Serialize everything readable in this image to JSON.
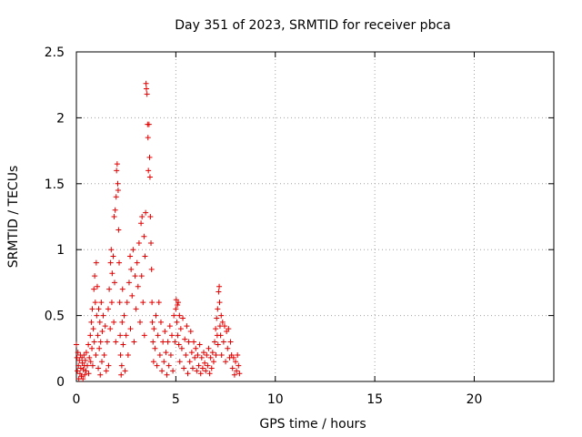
{
  "chart_data": {
    "type": "scatter",
    "title": "Day 351 of 2023, SRMTID for receiver pbca",
    "xlabel": "GPS time / hours",
    "ylabel": "SRMTID / TECUs",
    "xlim": [
      0,
      24
    ],
    "ylim": [
      0,
      2.5
    ],
    "x_ticks": [
      0,
      5,
      10,
      15,
      20
    ],
    "y_ticks": [
      0,
      0.5,
      1,
      1.5,
      2,
      2.5
    ],
    "x_tick_labels": [
      "0",
      "5",
      "10",
      "15",
      "20"
    ],
    "y_tick_labels": [
      "0",
      "0.5",
      "1",
      "1.5",
      "2",
      "2.5"
    ],
    "grid": true,
    "marker": "plus",
    "series": [
      {
        "name": "SRMTID",
        "color": "#e00000",
        "points": [
          [
            0.0,
            0.28
          ],
          [
            0.03,
            0.18
          ],
          [
            0.05,
            0.08
          ],
          [
            0.08,
            0.22
          ],
          [
            0.1,
            0.12
          ],
          [
            0.12,
            0.02
          ],
          [
            0.15,
            0.16
          ],
          [
            0.18,
            0.06
          ],
          [
            0.2,
            0.2
          ],
          [
            0.22,
            0.1
          ],
          [
            0.25,
            0.04
          ],
          [
            0.28,
            0.18
          ],
          [
            0.3,
            0.14
          ],
          [
            0.33,
            0.02
          ],
          [
            0.35,
            0.09
          ],
          [
            0.38,
            0.2
          ],
          [
            0.4,
            0.12
          ],
          [
            0.42,
            0.05
          ],
          [
            0.45,
            0.16
          ],
          [
            0.48,
            0.08
          ],
          [
            0.5,
            0.22
          ],
          [
            0.55,
            0.12
          ],
          [
            0.6,
            0.28
          ],
          [
            0.62,
            0.06
          ],
          [
            0.65,
            0.18
          ],
          [
            0.7,
            0.35
          ],
          [
            0.72,
            0.15
          ],
          [
            0.75,
            0.45
          ],
          [
            0.78,
            0.25
          ],
          [
            0.8,
            0.55
          ],
          [
            0.82,
            0.12
          ],
          [
            0.85,
            0.4
          ],
          [
            0.88,
            0.7
          ],
          [
            0.9,
            0.3
          ],
          [
            0.92,
            0.8
          ],
          [
            0.95,
            0.6
          ],
          [
            0.98,
            0.2
          ],
          [
            1.0,
            0.9
          ],
          [
            1.02,
            0.5
          ],
          [
            1.05,
            0.72
          ],
          [
            1.08,
            0.35
          ],
          [
            1.1,
            0.1
          ],
          [
            1.12,
            0.55
          ],
          [
            1.15,
            0.25
          ],
          [
            1.18,
            0.45
          ],
          [
            1.2,
            0.05
          ],
          [
            1.22,
            0.3
          ],
          [
            1.25,
            0.6
          ],
          [
            1.28,
            0.15
          ],
          [
            1.3,
            0.38
          ],
          [
            1.35,
            0.5
          ],
          [
            1.4,
            0.2
          ],
          [
            1.45,
            0.42
          ],
          [
            1.5,
            0.08
          ],
          [
            1.55,
            0.3
          ],
          [
            1.6,
            0.55
          ],
          [
            1.62,
            0.12
          ],
          [
            1.65,
            0.7
          ],
          [
            1.7,
            0.4
          ],
          [
            1.72,
            0.9
          ],
          [
            1.75,
            1.0
          ],
          [
            1.78,
            0.6
          ],
          [
            1.8,
            0.82
          ],
          [
            1.85,
            0.95
          ],
          [
            1.88,
            0.45
          ],
          [
            1.9,
            1.25
          ],
          [
            1.92,
            0.75
          ],
          [
            1.95,
            1.3
          ],
          [
            1.98,
            0.3
          ],
          [
            2.0,
            1.4
          ],
          [
            2.02,
            1.6
          ],
          [
            2.05,
            1.65
          ],
          [
            2.08,
            1.5
          ],
          [
            2.1,
            1.45
          ],
          [
            2.12,
            1.15
          ],
          [
            2.15,
            0.9
          ],
          [
            2.18,
            0.6
          ],
          [
            2.2,
            0.35
          ],
          [
            2.22,
            0.2
          ],
          [
            2.25,
            0.05
          ],
          [
            2.28,
            0.12
          ],
          [
            2.3,
            0.45
          ],
          [
            2.32,
            0.7
          ],
          [
            2.35,
            0.28
          ],
          [
            2.4,
            0.5
          ],
          [
            2.45,
            0.08
          ],
          [
            2.5,
            0.35
          ],
          [
            2.55,
            0.6
          ],
          [
            2.6,
            0.2
          ],
          [
            2.65,
            0.75
          ],
          [
            2.7,
            0.95
          ],
          [
            2.72,
            0.4
          ],
          [
            2.75,
            0.85
          ],
          [
            2.8,
            0.65
          ],
          [
            2.85,
            1.0
          ],
          [
            2.9,
            0.3
          ],
          [
            2.95,
            0.8
          ],
          [
            3.0,
            0.55
          ],
          [
            3.05,
            0.9
          ],
          [
            3.1,
            0.72
          ],
          [
            3.15,
            1.05
          ],
          [
            3.2,
            0.45
          ],
          [
            3.25,
            1.2
          ],
          [
            3.28,
            0.8
          ],
          [
            3.3,
            1.25
          ],
          [
            3.35,
            0.6
          ],
          [
            3.4,
            1.1
          ],
          [
            3.42,
            0.35
          ],
          [
            3.45,
            0.95
          ],
          [
            3.48,
            1.28
          ],
          [
            3.5,
            2.26
          ],
          [
            3.52,
            2.22
          ],
          [
            3.55,
            2.18
          ],
          [
            3.58,
            1.95
          ],
          [
            3.6,
            1.85
          ],
          [
            3.62,
            1.6
          ],
          [
            3.65,
            1.95
          ],
          [
            3.68,
            1.7
          ],
          [
            3.7,
            1.55
          ],
          [
            3.72,
            1.25
          ],
          [
            3.75,
            1.05
          ],
          [
            3.78,
            0.85
          ],
          [
            3.8,
            0.6
          ],
          [
            3.82,
            0.45
          ],
          [
            3.85,
            0.3
          ],
          [
            3.88,
            0.15
          ],
          [
            3.9,
            0.4
          ],
          [
            3.95,
            0.25
          ],
          [
            4.0,
            0.5
          ],
          [
            4.05,
            0.12
          ],
          [
            4.1,
            0.35
          ],
          [
            4.15,
            0.6
          ],
          [
            4.2,
            0.2
          ],
          [
            4.25,
            0.45
          ],
          [
            4.3,
            0.08
          ],
          [
            4.35,
            0.3
          ],
          [
            4.4,
            0.15
          ],
          [
            4.45,
            0.38
          ],
          [
            4.5,
            0.22
          ],
          [
            4.55,
            0.05
          ],
          [
            4.6,
            0.3
          ],
          [
            4.65,
            0.12
          ],
          [
            4.7,
            0.42
          ],
          [
            4.75,
            0.2
          ],
          [
            4.8,
            0.35
          ],
          [
            4.85,
            0.08
          ],
          [
            4.9,
            0.5
          ],
          [
            4.95,
            0.3
          ],
          [
            5.0,
            0.55
          ],
          [
            5.02,
            0.62
          ],
          [
            5.05,
            0.45
          ],
          [
            5.08,
            0.58
          ],
          [
            5.1,
            0.35
          ],
          [
            5.12,
            0.6
          ],
          [
            5.15,
            0.28
          ],
          [
            5.18,
            0.5
          ],
          [
            5.2,
            0.15
          ],
          [
            5.25,
            0.4
          ],
          [
            5.3,
            0.25
          ],
          [
            5.35,
            0.48
          ],
          [
            5.4,
            0.1
          ],
          [
            5.45,
            0.32
          ],
          [
            5.5,
            0.2
          ],
          [
            5.55,
            0.42
          ],
          [
            5.6,
            0.06
          ],
          [
            5.65,
            0.3
          ],
          [
            5.7,
            0.15
          ],
          [
            5.75,
            0.38
          ],
          [
            5.8,
            0.22
          ],
          [
            5.85,
            0.1
          ],
          [
            5.9,
            0.3
          ],
          [
            5.95,
            0.18
          ],
          [
            6.0,
            0.25
          ],
          [
            6.05,
            0.08
          ],
          [
            6.1,
            0.2
          ],
          [
            6.15,
            0.12
          ],
          [
            6.2,
            0.28
          ],
          [
            6.25,
            0.06
          ],
          [
            6.3,
            0.18
          ],
          [
            6.35,
            0.1
          ],
          [
            6.4,
            0.22
          ],
          [
            6.45,
            0.14
          ],
          [
            6.5,
            0.08
          ],
          [
            6.55,
            0.2
          ],
          [
            6.6,
            0.12
          ],
          [
            6.65,
            0.25
          ],
          [
            6.7,
            0.06
          ],
          [
            6.75,
            0.18
          ],
          [
            6.8,
            0.1
          ],
          [
            6.85,
            0.22
          ],
          [
            6.9,
            0.15
          ],
          [
            6.95,
            0.3
          ],
          [
            7.0,
            0.4
          ],
          [
            7.02,
            0.2
          ],
          [
            7.05,
            0.48
          ],
          [
            7.08,
            0.35
          ],
          [
            7.1,
            0.55
          ],
          [
            7.12,
            0.28
          ],
          [
            7.15,
            0.68
          ],
          [
            7.18,
            0.72
          ],
          [
            7.2,
            0.6
          ],
          [
            7.22,
            0.42
          ],
          [
            7.25,
            0.35
          ],
          [
            7.28,
            0.5
          ],
          [
            7.3,
            0.2
          ],
          [
            7.35,
            0.45
          ],
          [
            7.4,
            0.3
          ],
          [
            7.45,
            0.42
          ],
          [
            7.5,
            0.15
          ],
          [
            7.55,
            0.38
          ],
          [
            7.6,
            0.25
          ],
          [
            7.65,
            0.4
          ],
          [
            7.7,
            0.18
          ],
          [
            7.75,
            0.3
          ],
          [
            7.8,
            0.2
          ],
          [
            7.85,
            0.1
          ],
          [
            7.9,
            0.18
          ],
          [
            7.95,
            0.05
          ],
          [
            8.0,
            0.15
          ],
          [
            8.05,
            0.08
          ],
          [
            8.1,
            0.2
          ],
          [
            8.15,
            0.12
          ],
          [
            8.2,
            0.06
          ]
        ]
      }
    ]
  }
}
